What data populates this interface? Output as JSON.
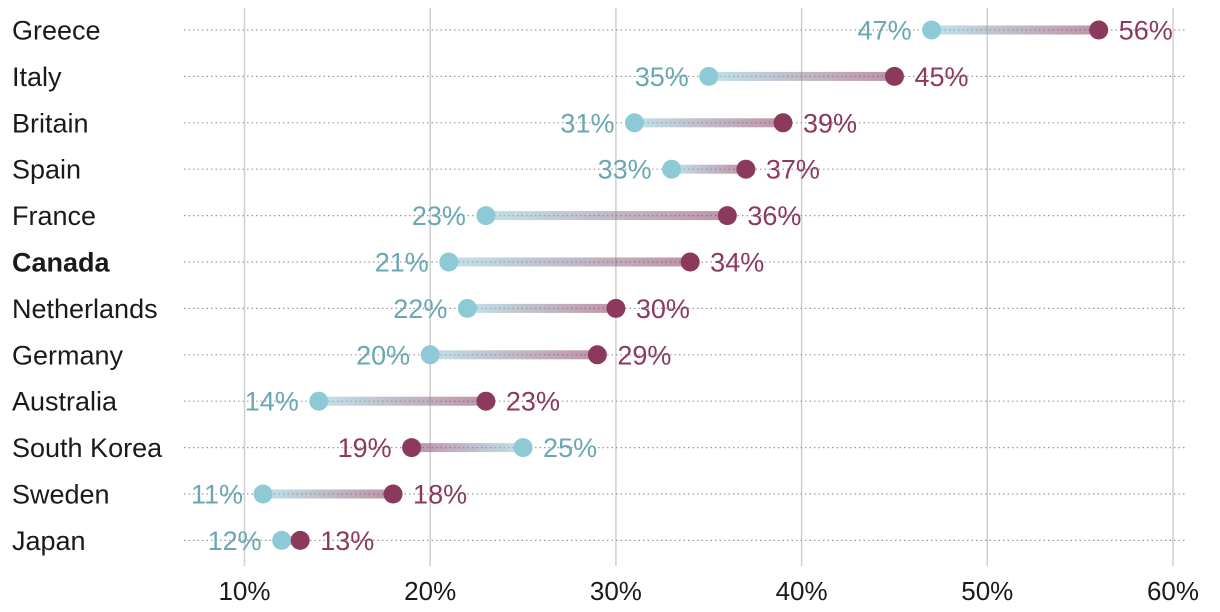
{
  "chart_data": {
    "type": "dumbbell",
    "title": "",
    "xlabel": "",
    "ylabel": "",
    "xlim": [
      7,
      61
    ],
    "xticks": [
      10,
      20,
      30,
      40,
      50,
      60
    ],
    "tick_labels": [
      "10%",
      "20%",
      "30%",
      "40%",
      "50%",
      "60%"
    ],
    "series": [
      {
        "name": "series-teal",
        "color": "#8ecad6",
        "label_color": "#6aa7b5"
      },
      {
        "name": "series-purple",
        "color": "#8b3a5e",
        "label_color": "#8b3a5e"
      }
    ],
    "rows": [
      {
        "country": "Greece",
        "bold": false,
        "teal": 47,
        "purple": 56,
        "teal_label": "47%",
        "purple_label": "56%"
      },
      {
        "country": "Italy",
        "bold": false,
        "teal": 35,
        "purple": 45,
        "teal_label": "35%",
        "purple_label": "45%"
      },
      {
        "country": "Britain",
        "bold": false,
        "teal": 31,
        "purple": 39,
        "teal_label": "31%",
        "purple_label": "39%"
      },
      {
        "country": "Spain",
        "bold": false,
        "teal": 33,
        "purple": 37,
        "teal_label": "33%",
        "purple_label": "37%"
      },
      {
        "country": "France",
        "bold": false,
        "teal": 23,
        "purple": 36,
        "teal_label": "23%",
        "purple_label": "36%"
      },
      {
        "country": "Canada",
        "bold": true,
        "teal": 21,
        "purple": 34,
        "teal_label": "21%",
        "purple_label": "34%"
      },
      {
        "country": "Netherlands",
        "bold": false,
        "teal": 22,
        "purple": 30,
        "teal_label": "22%",
        "purple_label": "30%"
      },
      {
        "country": "Germany",
        "bold": false,
        "teal": 20,
        "purple": 29,
        "teal_label": "20%",
        "purple_label": "29%"
      },
      {
        "country": "Australia",
        "bold": false,
        "teal": 14,
        "purple": 23,
        "teal_label": "14%",
        "purple_label": "23%"
      },
      {
        "country": "South Korea",
        "bold": false,
        "teal": 25,
        "purple": 19,
        "teal_label": "25%",
        "purple_label": "19%"
      },
      {
        "country": "Sweden",
        "bold": false,
        "teal": 11,
        "purple": 18,
        "teal_label": "11%",
        "purple_label": "18%"
      },
      {
        "country": "Japan",
        "bold": false,
        "teal": 12,
        "purple": 13,
        "teal_label": "12%",
        "purple_label": "13%"
      }
    ]
  }
}
